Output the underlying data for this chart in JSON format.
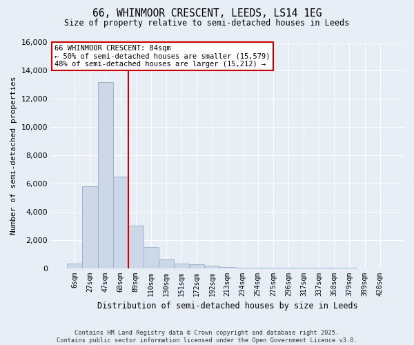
{
  "title": "66, WHINMOOR CRESCENT, LEEDS, LS14 1EG",
  "subtitle": "Size of property relative to semi-detached houses in Leeds",
  "xlabel": "Distribution of semi-detached houses by size in Leeds",
  "ylabel": "Number of semi-detached properties",
  "bar_labels": [
    "6sqm",
    "27sqm",
    "47sqm",
    "68sqm",
    "89sqm",
    "110sqm",
    "130sqm",
    "151sqm",
    "172sqm",
    "192sqm",
    "213sqm",
    "234sqm",
    "254sqm",
    "275sqm",
    "296sqm",
    "317sqm",
    "337sqm",
    "358sqm",
    "379sqm",
    "399sqm",
    "420sqm"
  ],
  "bar_values": [
    300,
    5800,
    13200,
    6500,
    3000,
    1500,
    600,
    300,
    250,
    150,
    100,
    50,
    50,
    30,
    10,
    10,
    5,
    5,
    3,
    2,
    0
  ],
  "bar_color": "#ccd8e8",
  "bar_edgecolor": "#9ab4cc",
  "vline_color": "#cc0000",
  "ylim": [
    0,
    16000
  ],
  "yticks": [
    0,
    2000,
    4000,
    6000,
    8000,
    10000,
    12000,
    14000,
    16000
  ],
  "annotation_title": "66 WHINMOOR CRESCENT: 84sqm",
  "annotation_line1": "← 50% of semi-detached houses are smaller (15,579)",
  "annotation_line2": "48% of semi-detached houses are larger (15,212) →",
  "annotation_box_facecolor": "#ffffff",
  "annotation_box_edgecolor": "#cc0000",
  "footer_line1": "Contains HM Land Registry data © Crown copyright and database right 2025.",
  "footer_line2": "Contains public sector information licensed under the Open Government Licence v3.0.",
  "bg_color": "#e8eef5",
  "plot_bg_color": "#e8eef5"
}
